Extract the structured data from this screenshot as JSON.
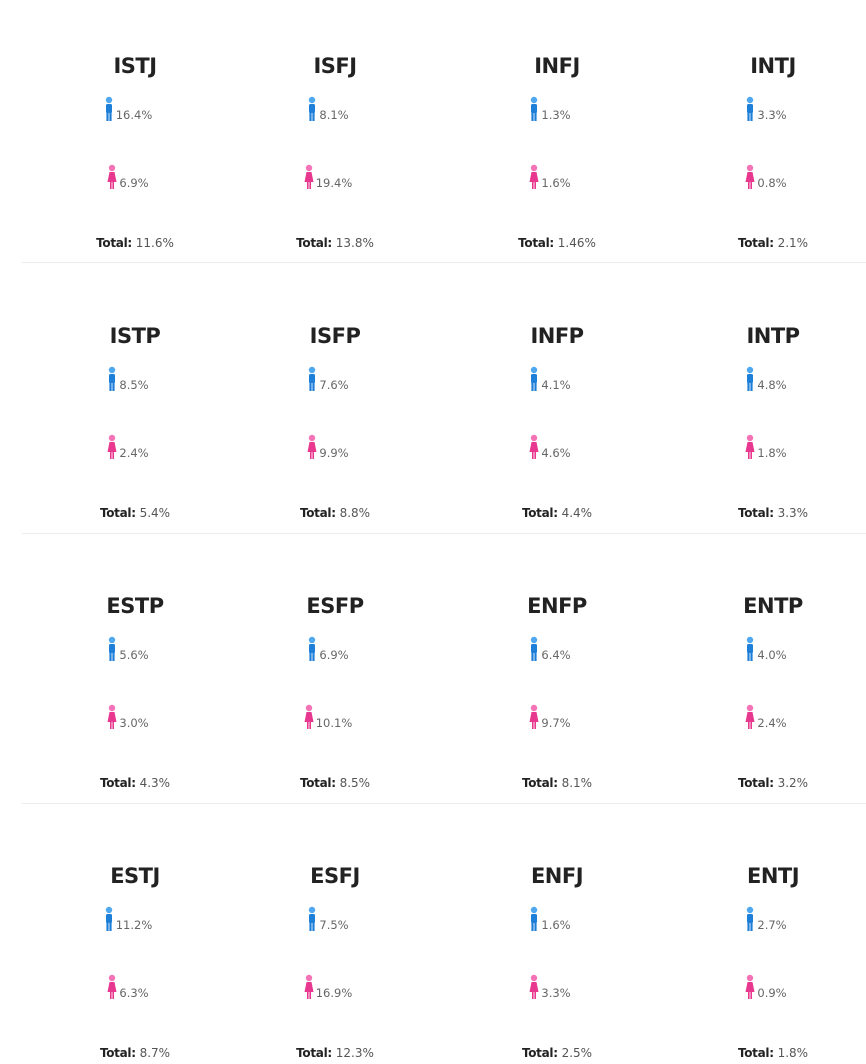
{
  "total_label": "Total:",
  "types": [
    {
      "name": "ISTJ",
      "male": "16.4%",
      "female": "6.9%",
      "total": "11.6%"
    },
    {
      "name": "ISFJ",
      "male": "8.1%",
      "female": "19.4%",
      "total": "13.8%"
    },
    {
      "name": "INFJ",
      "male": "1.3%",
      "female": "1.6%",
      "total": "1.46%"
    },
    {
      "name": "INTJ",
      "male": "3.3%",
      "female": "0.8%",
      "total": "2.1%"
    },
    {
      "name": "ISTP",
      "male": "8.5%",
      "female": "2.4%",
      "total": "5.4%"
    },
    {
      "name": "ISFP",
      "male": "7.6%",
      "female": "9.9%",
      "total": "8.8%"
    },
    {
      "name": "INFP",
      "male": "4.1%",
      "female": "4.6%",
      "total": "4.4%"
    },
    {
      "name": "INTP",
      "male": "4.8%",
      "female": "1.8%",
      "total": "3.3%"
    },
    {
      "name": "ESTP",
      "male": "5.6%",
      "female": "3.0%",
      "total": "4.3%"
    },
    {
      "name": "ESFP",
      "male": "6.9%",
      "female": "10.1%",
      "total": "8.5%"
    },
    {
      "name": "ENFP",
      "male": "6.4%",
      "female": "9.7%",
      "total": "8.1%"
    },
    {
      "name": "ENTP",
      "male": "4.0%",
      "female": "2.4%",
      "total": "3.2%"
    },
    {
      "name": "ESTJ",
      "male": "11.2%",
      "female": "6.3%",
      "total": "8.7%"
    },
    {
      "name": "ESFJ",
      "male": "7.5%",
      "female": "16.9%",
      "total": "12.3%"
    },
    {
      "name": "ENFJ",
      "male": "1.6%",
      "female": "3.3%",
      "total": "2.5%"
    },
    {
      "name": "ENTJ",
      "male": "2.7%",
      "female": "0.9%",
      "total": "1.8%"
    }
  ]
}
